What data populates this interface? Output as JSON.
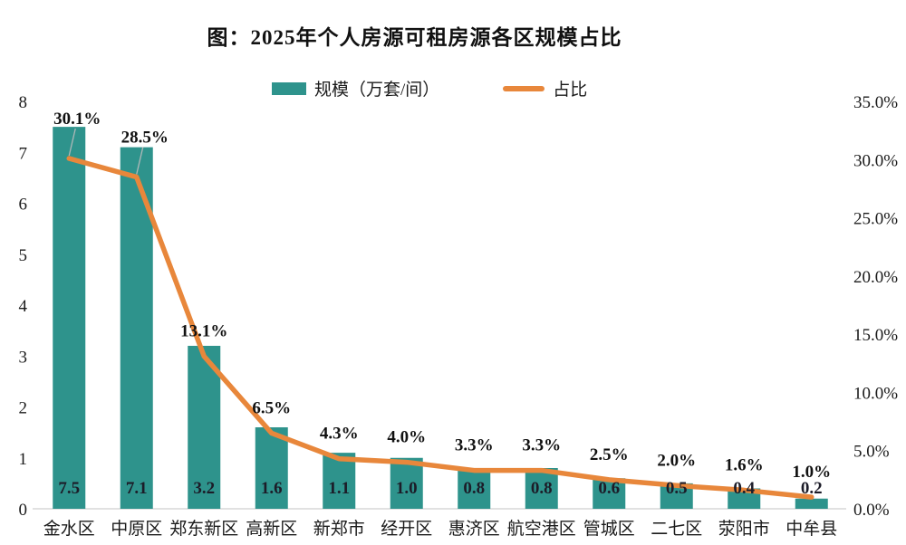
{
  "colors": {
    "bar": "#2E938C",
    "line": "#E8873B",
    "leader": "#AEB8B8",
    "baseline": "#CFCFCF",
    "text": "#1B1B1B",
    "value_label": "#1C1C28",
    "pct_label": "#111111"
  },
  "chart_data": {
    "type": "bar",
    "subtype": "bar+line-combo",
    "title": "图：2025年个人房源可租房源各区规模占比",
    "categories": [
      "金水区",
      "中原区",
      "郑东新区",
      "高新区",
      "新郑市",
      "经开区",
      "惠济区",
      "航空港区",
      "管城区",
      "二七区",
      "荥阳市",
      "中牟县"
    ],
    "series": [
      {
        "name": "规模（万套/间）",
        "chart": "bar",
        "axis": "left",
        "values": [
          7.5,
          7.1,
          3.2,
          1.6,
          1.1,
          1.0,
          0.8,
          0.8,
          0.6,
          0.5,
          0.4,
          0.2
        ],
        "labels": [
          "7.5",
          "7.1",
          "3.2",
          "1.6",
          "1.1",
          "1.0",
          "0.8",
          "0.8",
          "0.6",
          "0.5",
          "0.4",
          "0.2"
        ]
      },
      {
        "name": "占比",
        "chart": "line",
        "axis": "right",
        "values": [
          30.1,
          28.5,
          13.1,
          6.5,
          4.3,
          4.0,
          3.3,
          3.3,
          2.5,
          2.0,
          1.6,
          1.0
        ],
        "labels": [
          "30.1%",
          "28.5%",
          "13.1%",
          "6.5%",
          "4.3%",
          "4.0%",
          "3.3%",
          "3.3%",
          "2.5%",
          "2.0%",
          "1.6%",
          "1.0%"
        ]
      }
    ],
    "left_axis": {
      "min": 0,
      "max": 8,
      "step": 1
    },
    "right_axis": {
      "min": 0,
      "max": 35,
      "step": 5,
      "suffix": "%",
      "decimals": 1
    },
    "grid": false,
    "legend_position": "top"
  }
}
